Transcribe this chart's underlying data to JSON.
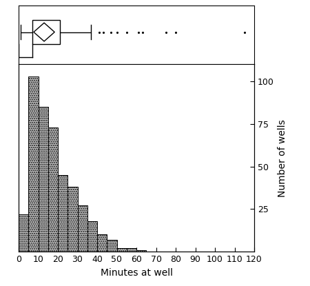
{
  "hist_bin_edges": [
    0,
    5,
    10,
    15,
    20,
    25,
    30,
    35,
    40,
    45,
    50,
    55,
    60,
    65
  ],
  "hist_counts": [
    22,
    103,
    85,
    73,
    45,
    38,
    27,
    18,
    10,
    7,
    2,
    2,
    1
  ],
  "xlabel": "Minutes at well",
  "ylabel": "Number of wells",
  "xlim": [
    0,
    120
  ],
  "ylim": [
    0,
    110
  ],
  "yticks": [
    25,
    50,
    75,
    100
  ],
  "xticks": [
    0,
    10,
    20,
    30,
    40,
    50,
    60,
    70,
    80,
    90,
    100,
    110,
    120
  ],
  "bar_color": "#c8c8c8",
  "bar_edgecolor": "#000000",
  "boxplot_data": {
    "whislo": 1,
    "q1": 7,
    "med": 13,
    "q3": 21,
    "whishi": 37,
    "fliers": [
      41,
      43,
      47,
      50,
      55,
      61,
      63,
      75,
      80,
      115
    ]
  },
  "fig_width": 4.5,
  "fig_height": 4.15,
  "dpi": 100,
  "background_color": "#ffffff"
}
